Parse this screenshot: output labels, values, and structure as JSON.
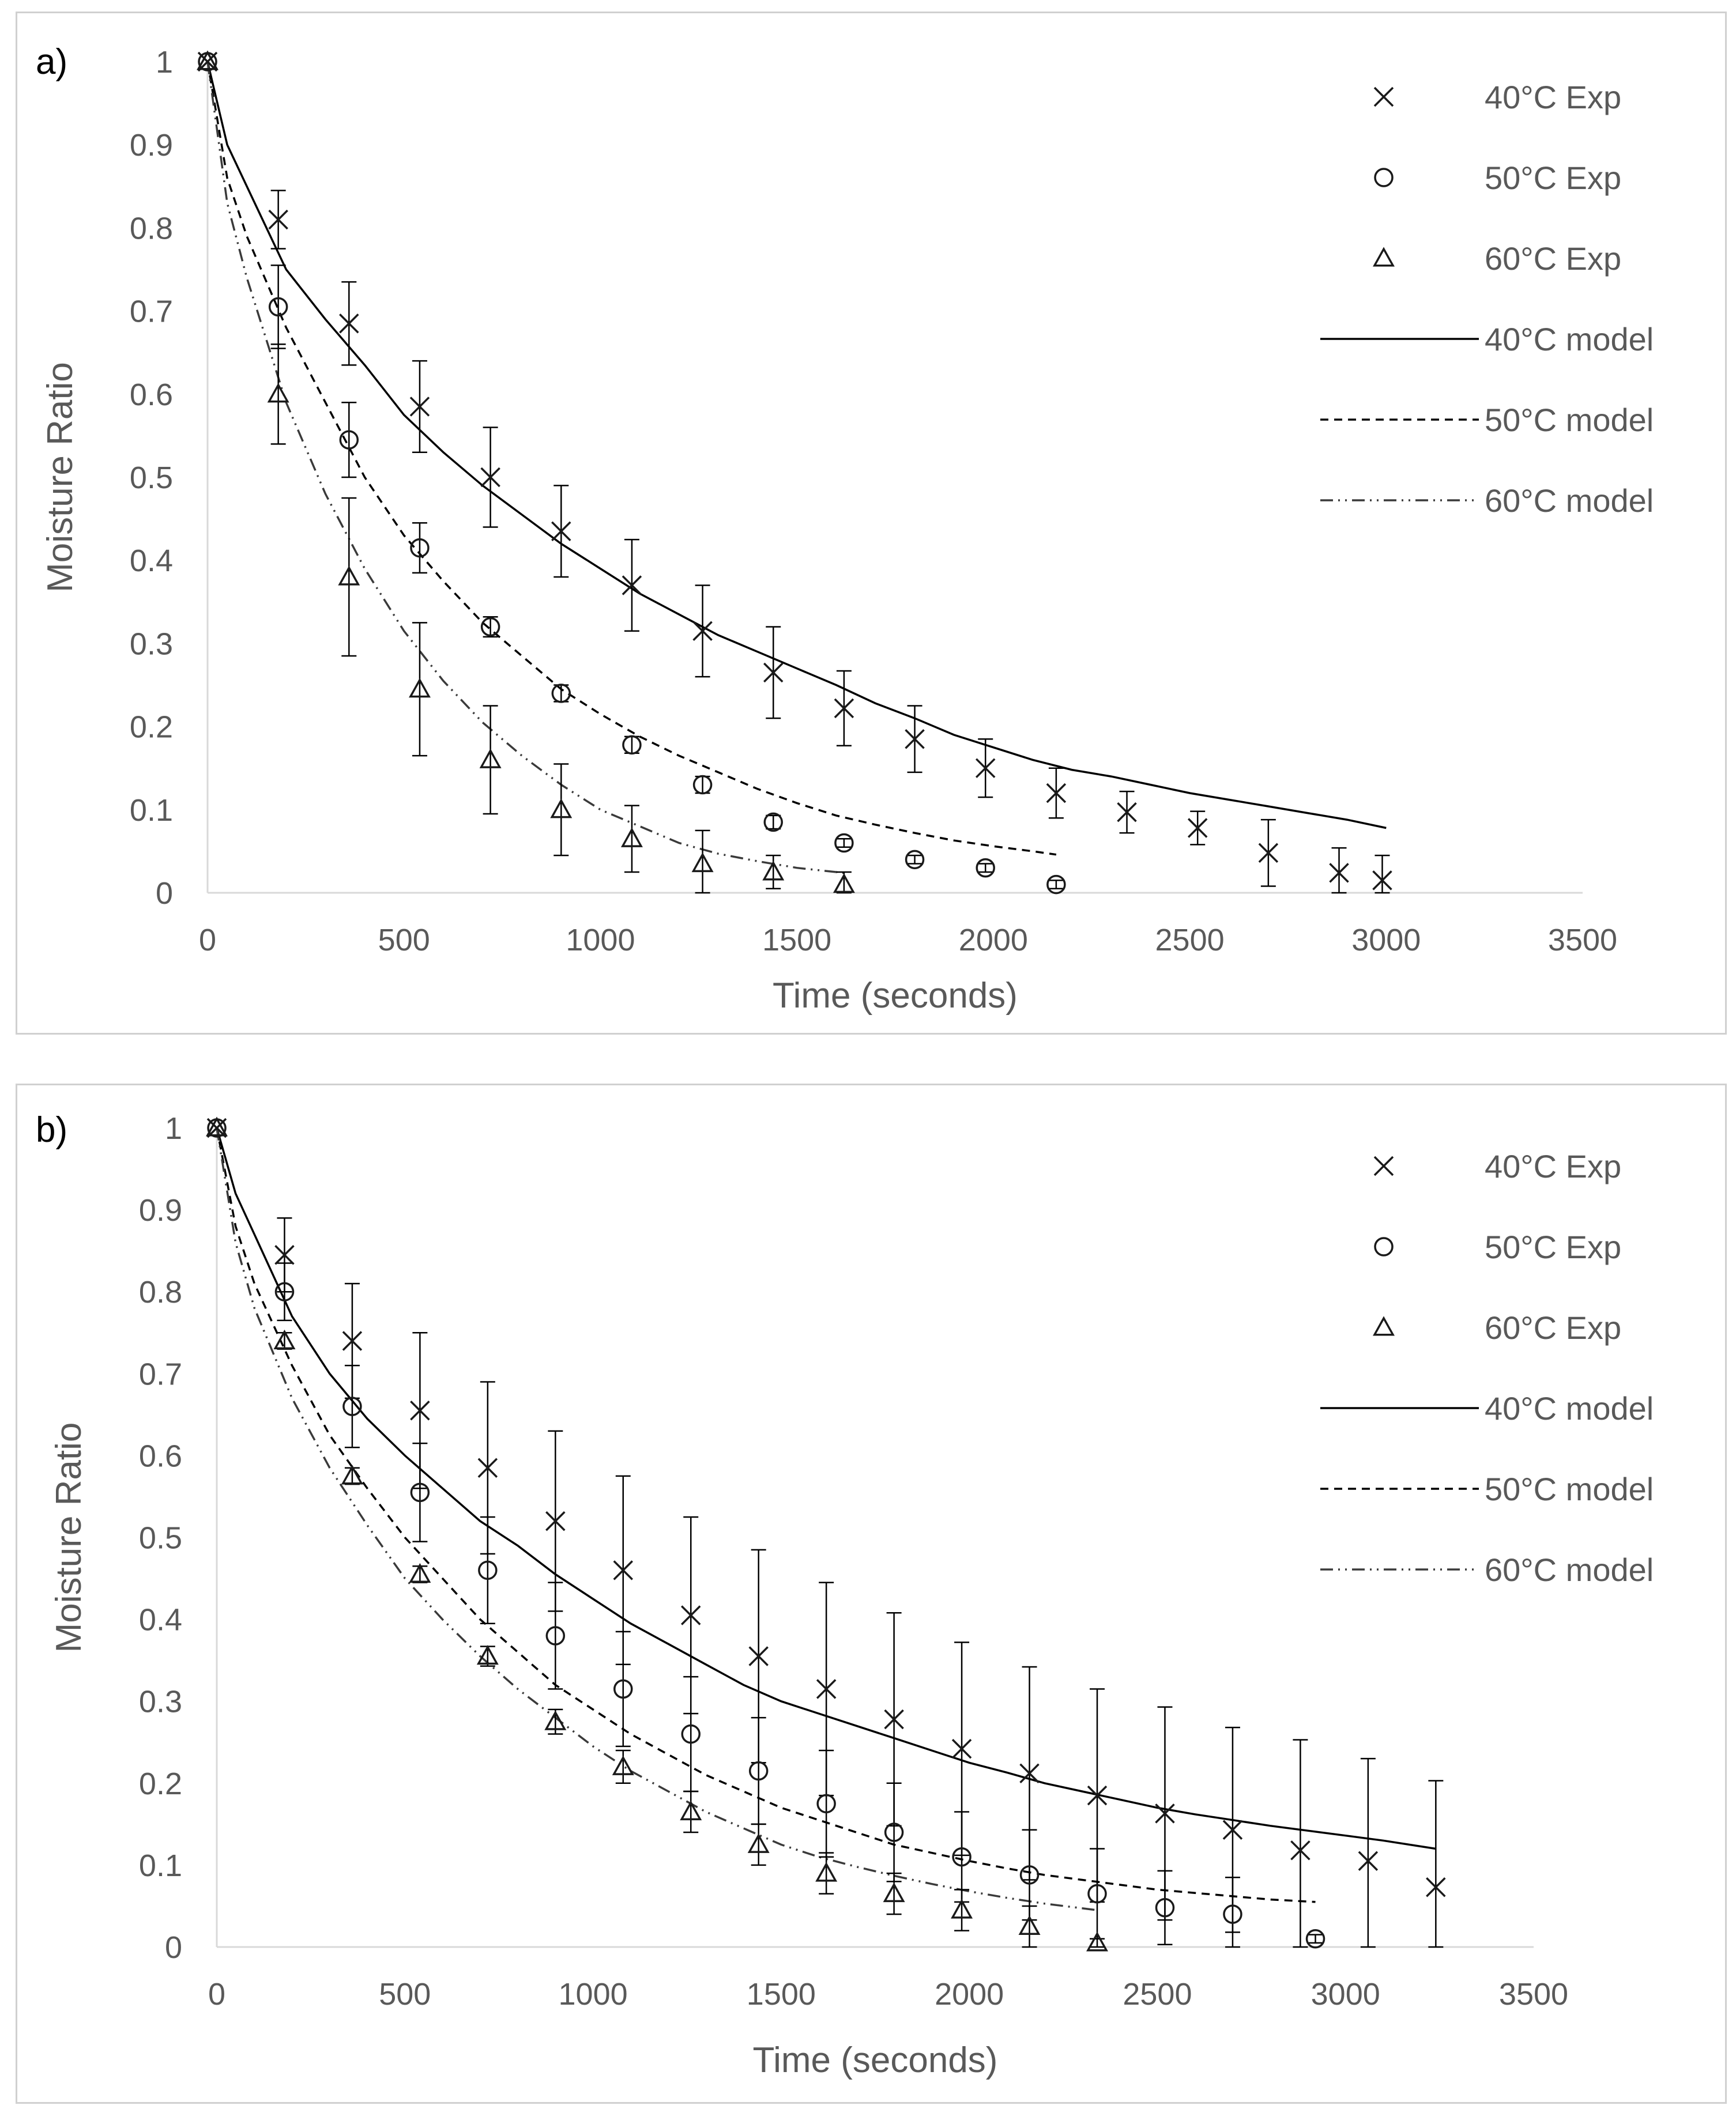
{
  "chart_data": [
    {
      "panel_label": "a)",
      "type": "scatter",
      "xlabel": "Time (seconds)",
      "ylabel": "Moisture Ratio",
      "xlim": [
        0,
        3500
      ],
      "ylim": [
        0,
        1
      ],
      "x_ticks": [
        "0",
        "500",
        "1000",
        "1500",
        "2000",
        "2500",
        "3000",
        "3500"
      ],
      "y_ticks": [
        "0",
        "0.1",
        "0.2",
        "0.3",
        "0.4",
        "0.5",
        "0.6",
        "0.7",
        "0.8",
        "0.9",
        "1"
      ],
      "legend_position": "top-right",
      "grid": false,
      "series": [
        {
          "name": "40°C Exp",
          "kind": "points",
          "marker": "x",
          "x": [
            0,
            180,
            360,
            540,
            720,
            900,
            1080,
            1260,
            1440,
            1620,
            1800,
            1980,
            2160,
            2340,
            2520,
            2700,
            2880,
            2990
          ],
          "y": [
            1,
            0.81,
            0.685,
            0.585,
            0.5,
            0.435,
            0.37,
            0.315,
            0.265,
            0.222,
            0.185,
            0.15,
            0.12,
            0.097,
            0.078,
            0.048,
            0.024,
            0.015
          ],
          "err": [
            0,
            0.035,
            0.05,
            0.055,
            0.06,
            0.055,
            0.055,
            0.055,
            0.055,
            0.045,
            0.04,
            0.035,
            0.03,
            0.025,
            0.02,
            0.04,
            0.03,
            0.03
          ]
        },
        {
          "name": "50°C Exp",
          "kind": "points",
          "marker": "o",
          "x": [
            0,
            180,
            360,
            540,
            720,
            900,
            1080,
            1260,
            1440,
            1620,
            1800,
            1980,
            2160
          ],
          "y": [
            1,
            0.705,
            0.545,
            0.415,
            0.32,
            0.24,
            0.178,
            0.13,
            0.085,
            0.06,
            0.04,
            0.03,
            0.01
          ],
          "err": [
            0,
            0.05,
            0.045,
            0.03,
            0.012,
            0.01,
            0.01,
            0.01,
            0.008,
            0.005,
            0.005,
            0.005,
            0.005
          ]
        },
        {
          "name": "60°C Exp",
          "kind": "points",
          "marker": "triangle",
          "x": [
            0,
            180,
            360,
            540,
            720,
            900,
            1080,
            1260,
            1440,
            1620
          ],
          "y": [
            1,
            0.6,
            0.38,
            0.245,
            0.16,
            0.1,
            0.065,
            0.035,
            0.025,
            0.01
          ],
          "err": [
            0,
            0.06,
            0.095,
            0.08,
            0.065,
            0.055,
            0.04,
            0.04,
            0.02,
            0.015
          ]
        },
        {
          "name": "40°C model",
          "kind": "line",
          "dash": "solid",
          "x": [
            0,
            50,
            100,
            200,
            300,
            400,
            500,
            600,
            700,
            800,
            900,
            1000,
            1100,
            1200,
            1300,
            1400,
            1500,
            1600,
            1700,
            1800,
            1900,
            2000,
            2100,
            2200,
            2300,
            2400,
            2500,
            2600,
            2700,
            2800,
            2900,
            3000
          ],
          "y": [
            1,
            0.9,
            0.85,
            0.75,
            0.69,
            0.635,
            0.575,
            0.53,
            0.49,
            0.455,
            0.42,
            0.39,
            0.36,
            0.335,
            0.31,
            0.29,
            0.27,
            0.25,
            0.228,
            0.21,
            0.19,
            0.175,
            0.16,
            0.148,
            0.14,
            0.13,
            0.12,
            0.112,
            0.104,
            0.096,
            0.088,
            0.078
          ]
        },
        {
          "name": "50°C model",
          "kind": "line",
          "dash": "dashed",
          "x": [
            0,
            50,
            100,
            200,
            300,
            400,
            500,
            600,
            700,
            800,
            900,
            1000,
            1100,
            1200,
            1300,
            1400,
            1500,
            1600,
            1700,
            1800,
            1900,
            2000,
            2100,
            2160
          ],
          "y": [
            1,
            0.86,
            0.79,
            0.68,
            0.59,
            0.5,
            0.43,
            0.375,
            0.325,
            0.285,
            0.245,
            0.215,
            0.188,
            0.165,
            0.145,
            0.125,
            0.108,
            0.093,
            0.082,
            0.072,
            0.063,
            0.056,
            0.05,
            0.046
          ]
        },
        {
          "name": "60°C model",
          "kind": "line",
          "dash": "dash-dot-dot",
          "x": [
            0,
            50,
            100,
            200,
            300,
            400,
            500,
            600,
            700,
            800,
            900,
            1000,
            1100,
            1200,
            1300,
            1400,
            1500,
            1600,
            1620
          ],
          "y": [
            1,
            0.83,
            0.74,
            0.59,
            0.48,
            0.39,
            0.315,
            0.255,
            0.205,
            0.165,
            0.13,
            0.1,
            0.08,
            0.06,
            0.047,
            0.038,
            0.03,
            0.025,
            0.024
          ]
        }
      ]
    },
    {
      "panel_label": "b)",
      "type": "scatter",
      "xlabel": "Time (seconds)",
      "ylabel": "Moisture Ratio",
      "xlim": [
        0,
        3500
      ],
      "ylim": [
        0,
        1
      ],
      "x_ticks": [
        "0",
        "500",
        "1000",
        "1500",
        "2000",
        "2500",
        "3000",
        "3500"
      ],
      "y_ticks": [
        "0",
        "0.1",
        "0.2",
        "0.3",
        "0.4",
        "0.5",
        "0.6",
        "0.7",
        "0.8",
        "0.9",
        "1"
      ],
      "legend_position": "top-right",
      "grid": false,
      "series": [
        {
          "name": "40°C Exp",
          "kind": "points",
          "marker": "x",
          "x": [
            0,
            180,
            360,
            540,
            720,
            900,
            1080,
            1260,
            1440,
            1620,
            1800,
            1980,
            2160,
            2340,
            2520,
            2700,
            2880,
            3060,
            3240
          ],
          "y": [
            1,
            0.845,
            0.74,
            0.655,
            0.585,
            0.52,
            0.46,
            0.405,
            0.355,
            0.315,
            0.278,
            0.242,
            0.212,
            0.185,
            0.163,
            0.143,
            0.118,
            0.105,
            0.073
          ],
          "err": [
            0,
            0.045,
            0.07,
            0.095,
            0.105,
            0.11,
            0.115,
            0.12,
            0.13,
            0.13,
            0.13,
            0.13,
            0.13,
            0.13,
            0.13,
            0.125,
            0.135,
            0.125,
            0.13
          ]
        },
        {
          "name": "50°C Exp",
          "kind": "points",
          "marker": "o",
          "x": [
            0,
            180,
            360,
            540,
            720,
            900,
            1080,
            1260,
            1440,
            1620,
            1800,
            1980,
            2160,
            2340,
            2520,
            2700,
            2920
          ],
          "y": [
            1,
            0.8,
            0.66,
            0.555,
            0.46,
            0.38,
            0.315,
            0.26,
            0.215,
            0.175,
            0.14,
            0.11,
            0.088,
            0.065,
            0.048,
            0.04,
            0.01
          ],
          "err": [
            0,
            0.035,
            0.05,
            0.06,
            0.065,
            0.065,
            0.07,
            0.07,
            0.065,
            0.065,
            0.06,
            0.055,
            0.055,
            0.055,
            0.045,
            0.045,
            0.005
          ]
        },
        {
          "name": "60°C Exp",
          "kind": "points",
          "marker": "triangle",
          "x": [
            0,
            180,
            360,
            540,
            720,
            900,
            1080,
            1260,
            1440,
            1620,
            1800,
            1980,
            2160,
            2340
          ],
          "y": [
            1,
            0.74,
            0.575,
            0.455,
            0.355,
            0.275,
            0.22,
            0.165,
            0.125,
            0.09,
            0.065,
            0.045,
            0.025,
            0.005
          ],
          "err": [
            0,
            0.01,
            0.01,
            0.01,
            0.012,
            0.015,
            0.02,
            0.025,
            0.025,
            0.025,
            0.025,
            0.025,
            0.025,
            0.005
          ]
        },
        {
          "name": "40°C model",
          "kind": "line",
          "dash": "solid",
          "x": [
            0,
            50,
            100,
            200,
            300,
            400,
            500,
            600,
            700,
            800,
            900,
            1000,
            1100,
            1200,
            1300,
            1400,
            1500,
            1600,
            1700,
            1800,
            1900,
            2000,
            2100,
            2200,
            2300,
            2400,
            2500,
            2600,
            2700,
            2800,
            2900,
            3000,
            3100,
            3240
          ],
          "y": [
            1,
            0.92,
            0.87,
            0.77,
            0.7,
            0.645,
            0.6,
            0.56,
            0.52,
            0.49,
            0.455,
            0.425,
            0.395,
            0.37,
            0.345,
            0.32,
            0.3,
            0.285,
            0.27,
            0.255,
            0.24,
            0.225,
            0.213,
            0.2,
            0.19,
            0.18,
            0.17,
            0.162,
            0.155,
            0.148,
            0.142,
            0.136,
            0.13,
            0.12
          ]
        },
        {
          "name": "50°C model",
          "kind": "line",
          "dash": "dashed",
          "x": [
            0,
            50,
            100,
            200,
            300,
            400,
            500,
            600,
            700,
            800,
            900,
            1000,
            1100,
            1200,
            1300,
            1400,
            1500,
            1600,
            1700,
            1800,
            1900,
            2000,
            2100,
            2200,
            2300,
            2400,
            2500,
            2600,
            2700,
            2800,
            2920
          ],
          "y": [
            1,
            0.88,
            0.81,
            0.71,
            0.625,
            0.56,
            0.5,
            0.45,
            0.4,
            0.36,
            0.32,
            0.29,
            0.26,
            0.235,
            0.21,
            0.19,
            0.17,
            0.155,
            0.14,
            0.125,
            0.115,
            0.105,
            0.096,
            0.088,
            0.082,
            0.076,
            0.07,
            0.066,
            0.062,
            0.058,
            0.055
          ]
        },
        {
          "name": "60°C model",
          "kind": "line",
          "dash": "dash-dot-dot",
          "x": [
            0,
            50,
            100,
            200,
            300,
            400,
            500,
            600,
            700,
            800,
            900,
            1000,
            1100,
            1200,
            1300,
            1400,
            1500,
            1600,
            1700,
            1800,
            1900,
            2000,
            2100,
            2200,
            2340
          ],
          "y": [
            1,
            0.86,
            0.78,
            0.67,
            0.585,
            0.515,
            0.45,
            0.4,
            0.355,
            0.315,
            0.28,
            0.245,
            0.215,
            0.19,
            0.165,
            0.145,
            0.125,
            0.11,
            0.098,
            0.087,
            0.077,
            0.068,
            0.06,
            0.053,
            0.045
          ]
        }
      ]
    }
  ]
}
